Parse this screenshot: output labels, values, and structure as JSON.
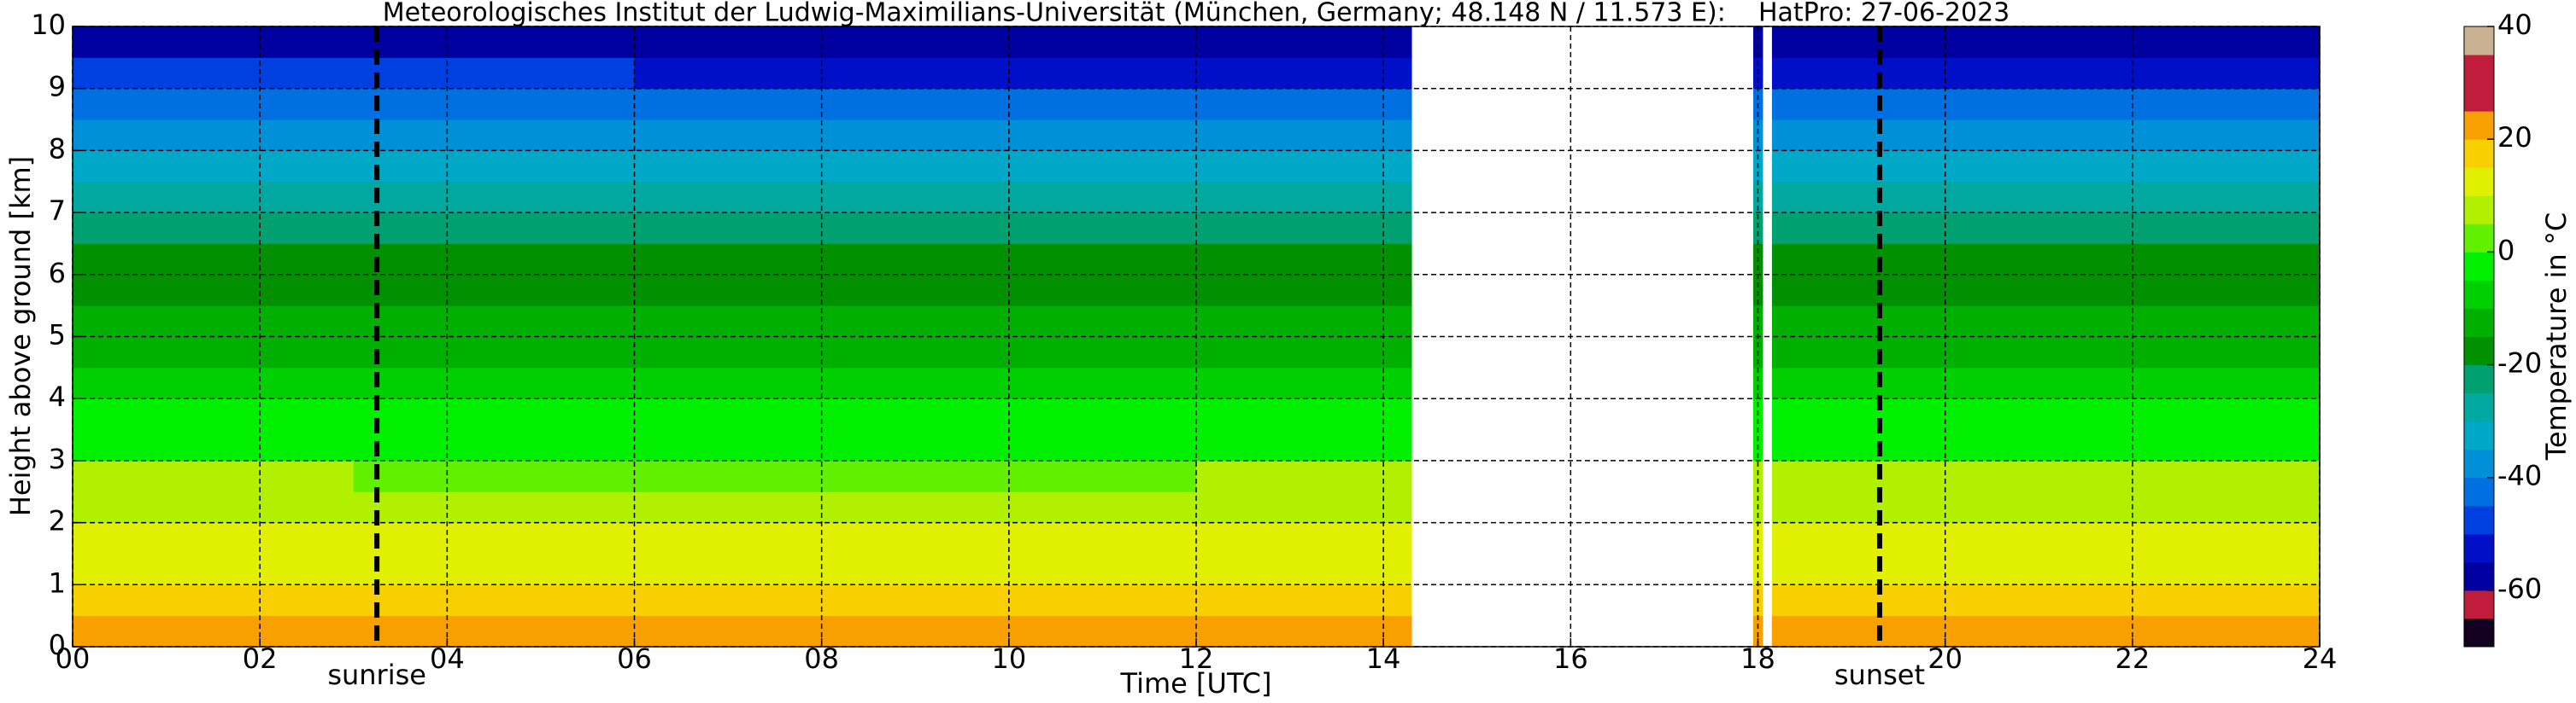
{
  "chart_data": {
    "type": "heatmap",
    "title": "Meteorologisches Institut der Ludwig-Maximilians-Universität (München, Germany; 48.148 N / 11.573 E):    HatPro: 27-06-2023",
    "xlabel": "Time [UTC]",
    "ylabel": "Height above ground [km]",
    "xlim": [
      0,
      24
    ],
    "ylim": [
      0,
      10
    ],
    "xticks": [
      {
        "value": 0,
        "label": "00"
      },
      {
        "value": 2,
        "label": "02"
      },
      {
        "value": 4,
        "label": "04"
      },
      {
        "value": 6,
        "label": "06"
      },
      {
        "value": 8,
        "label": "08"
      },
      10,
      12,
      14,
      16,
      18,
      20,
      22,
      24
    ],
    "yticks": [
      0,
      1,
      2,
      3,
      4,
      5,
      6,
      7,
      8,
      9,
      10
    ],
    "grid": true,
    "y_bins": [
      0,
      0.5,
      1,
      1.5,
      2,
      2.5,
      3,
      3.5,
      4,
      4.5,
      5,
      5.5,
      6,
      6.5,
      7,
      7.5,
      8,
      8.5,
      9,
      9.5,
      10
    ],
    "blocks": [
      {
        "x_bins": [
          0,
          3,
          6,
          9,
          12,
          14.3
        ],
        "z": [
          [
            20,
            15,
            12,
            10,
            9,
            6,
            -2,
            -5,
            -8,
            -11,
            -14,
            -17,
            -19,
            -24,
            -28,
            -32,
            -37,
            -42,
            -50,
            -57
          ],
          [
            20,
            15,
            12,
            10,
            8,
            5,
            -2,
            -5,
            -8,
            -11,
            -14,
            -17,
            -20,
            -24,
            -28,
            -33,
            -37,
            -43,
            -50,
            -57
          ],
          [
            21,
            16,
            12,
            10,
            8,
            5,
            -2,
            -5,
            -8,
            -12,
            -15,
            -18,
            -20,
            -24,
            -28,
            -33,
            -38,
            -43,
            -51,
            -57
          ],
          [
            22,
            16,
            13,
            11,
            8,
            5,
            -1,
            -5,
            -9,
            -12,
            -15,
            -18,
            -20,
            -24,
            -29,
            -33,
            -38,
            -43,
            -51,
            -58
          ],
          [
            22,
            16,
            13,
            11,
            9,
            6,
            -1,
            -4,
            -8,
            -11,
            -14,
            -17,
            -20,
            -24,
            -29,
            -33,
            -38,
            -44,
            -51,
            -58
          ]
        ]
      },
      {
        "x_bins": [
          17.95,
          18.05
        ],
        "z": [
          [
            22,
            16,
            13,
            11,
            9,
            6,
            -1,
            -4,
            -8,
            -11,
            -14,
            -17,
            -20,
            -24,
            -29,
            -33,
            -38,
            -44,
            -51,
            -58
          ]
        ]
      },
      {
        "x_bins": [
          18.15,
          21,
          24
        ],
        "z": [
          [
            22,
            17,
            13,
            11,
            9,
            6,
            -1,
            -4,
            -8,
            -11,
            -14,
            -17,
            -20,
            -24,
            -29,
            -33,
            -38,
            -44,
            -51,
            -58
          ],
          [
            21,
            16,
            13,
            11,
            9,
            6,
            -1,
            -4,
            -8,
            -11,
            -14,
            -17,
            -20,
            -25,
            -29,
            -33,
            -38,
            -44,
            -51,
            -58
          ]
        ]
      }
    ],
    "colorbar": {
      "label": "Temperature in °C",
      "lim": [
        -70,
        40
      ],
      "ticks": [
        -60,
        -40,
        -20,
        0,
        20,
        40
      ],
      "colors": [
        "#120020",
        "#c01c3c",
        "#0000a0",
        "#0010c8",
        "#0040e0",
        "#0070e0",
        "#0090d8",
        "#00a8c8",
        "#00a8a0",
        "#00a070",
        "#009000",
        "#00b000",
        "#00d000",
        "#00f000",
        "#60f000",
        "#b0f000",
        "#e0f000",
        "#f8d000",
        "#f8a000",
        "#c01c3c",
        "#c01c3c",
        "#c8b090"
      ]
    },
    "annotations": [
      {
        "text": "sunrise",
        "x": 3.25
      },
      {
        "text": "sunset",
        "x": 19.3
      }
    ]
  }
}
